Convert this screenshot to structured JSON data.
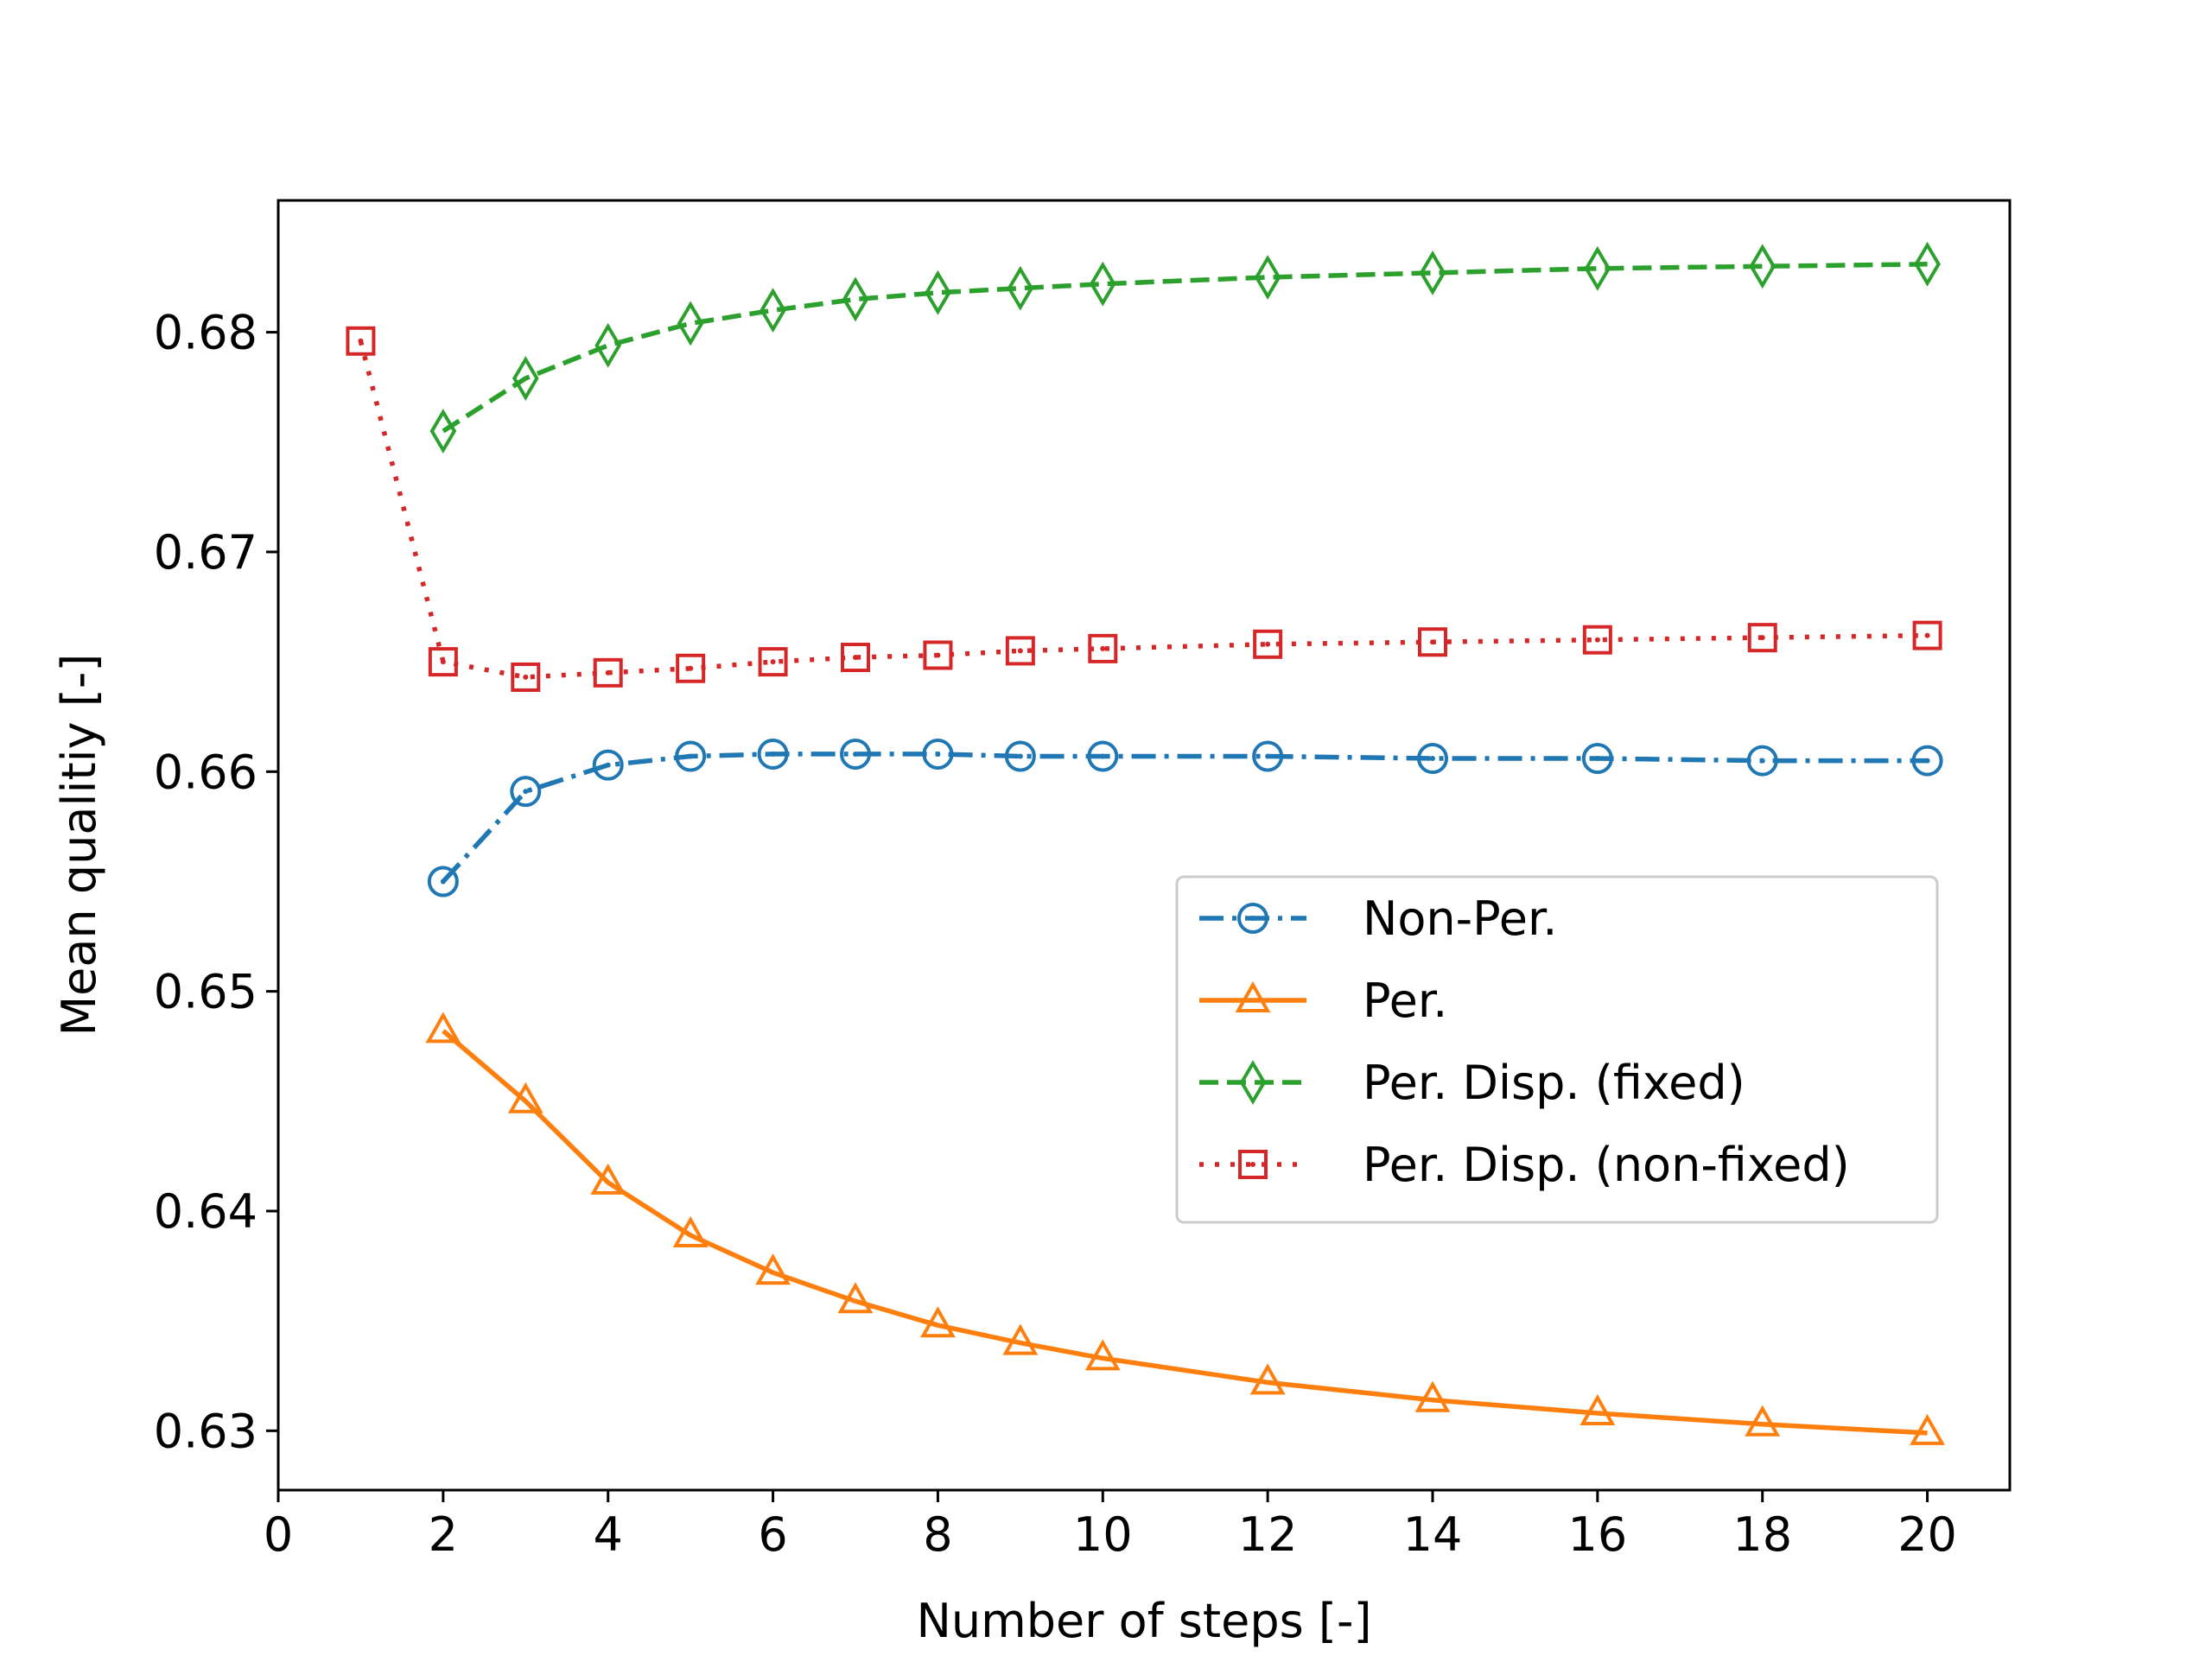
{
  "chart_data": {
    "type": "line",
    "title": "",
    "xlabel": "Number of steps [-]",
    "ylabel": "Mean qualitiy [-]",
    "xlim": [
      0,
      21
    ],
    "ylim": [
      0.6273,
      0.686
    ],
    "xticks": [
      0,
      2,
      4,
      6,
      8,
      10,
      12,
      14,
      16,
      18,
      20
    ],
    "yticks": [
      0.63,
      0.64,
      0.65,
      0.66,
      0.67,
      0.68
    ],
    "ytick_labels": [
      "0.63",
      "0.64",
      "0.65",
      "0.66",
      "0.67",
      "0.68"
    ],
    "grid": false,
    "legend_position": "center-right",
    "series": [
      {
        "name": "Non-Per.",
        "color": "#1f77b4",
        "marker": "circle-dot",
        "line_style": "dashdot",
        "x": [
          2,
          3,
          4,
          5,
          6,
          7,
          8,
          9,
          10,
          12,
          14,
          16,
          18,
          20
        ],
        "y": [
          0.655,
          0.6591,
          0.6603,
          0.6607,
          0.6608,
          0.6608,
          0.6608,
          0.6607,
          0.6607,
          0.6607,
          0.6606,
          0.6606,
          0.6605,
          0.6605
        ]
      },
      {
        "name": "Per.",
        "color": "#ff7f0e",
        "marker": "triangle",
        "line_style": "solid",
        "x": [
          2,
          3,
          4,
          5,
          6,
          7,
          8,
          9,
          10,
          12,
          14,
          16,
          18,
          20
        ],
        "y": [
          0.6482,
          0.645,
          0.6413,
          0.6389,
          0.6372,
          0.6359,
          0.6348,
          0.634,
          0.6333,
          0.6322,
          0.6314,
          0.6308,
          0.6303,
          0.6299
        ]
      },
      {
        "name": "Per. Disp. (fixed)",
        "color": "#2ca02c",
        "marker": "thin-diamond",
        "line_style": "dashed",
        "x": [
          2,
          3,
          4,
          5,
          6,
          7,
          8,
          9,
          10,
          12,
          14,
          16,
          18,
          20
        ],
        "y": [
          0.6755,
          0.6779,
          0.6794,
          0.6804,
          0.681,
          0.6815,
          0.6818,
          0.682,
          0.6822,
          0.6825,
          0.6827,
          0.6829,
          0.683,
          0.6831
        ]
      },
      {
        "name": "Per. Disp. (non-fixed)",
        "color": "#d62728",
        "marker": "square-dot",
        "line_style": "dotted",
        "x": [
          1,
          2,
          3,
          4,
          5,
          6,
          7,
          8,
          9,
          10,
          12,
          14,
          16,
          18,
          20
        ],
        "y": [
          0.6796,
          0.665,
          0.6643,
          0.6645,
          0.6647,
          0.665,
          0.6652,
          0.6653,
          0.6655,
          0.6656,
          0.6658,
          0.6659,
          0.666,
          0.6661,
          0.6662
        ]
      }
    ]
  }
}
